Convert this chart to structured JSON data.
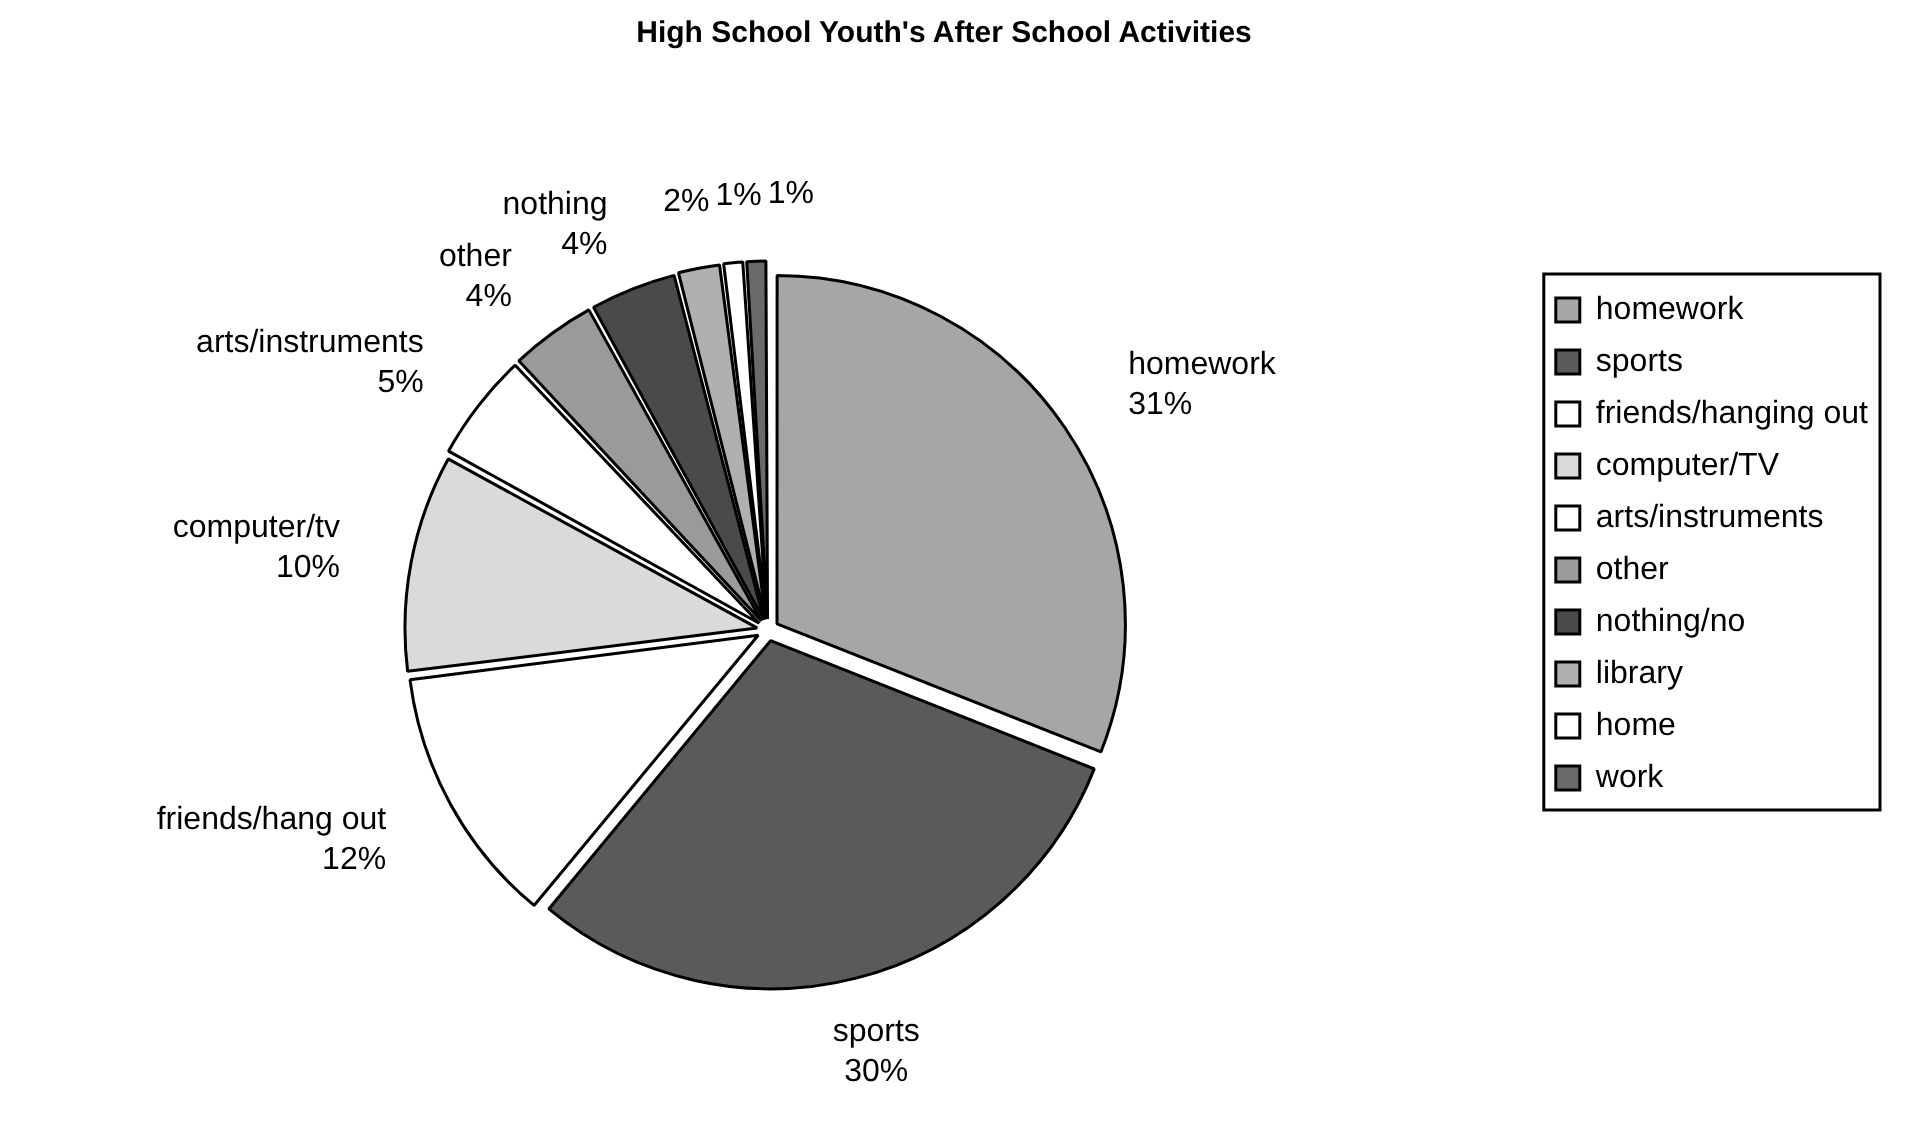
{
  "chart_data": {
    "type": "pie",
    "title": "High School Youth's After School Activities",
    "categories": [
      "homework",
      "sports",
      "friends/hanging out",
      "computer/TV",
      "arts/instruments",
      "other",
      "nothing/no",
      "library",
      "home",
      "work"
    ],
    "values": [
      31,
      30,
      12,
      10,
      5,
      4,
      4,
      2,
      1,
      1
    ],
    "colors": [
      "#a6a6a6",
      "#5a5a5a",
      "#ffffff",
      "#dadada",
      "#ffffff",
      "#9a9a9a",
      "#4a4a4a",
      "#b0b0b0",
      "#ffffff",
      "#6a6a6a"
    ],
    "value_labels": [
      "31%",
      "30%",
      "12%",
      "10%",
      "5%",
      "4%",
      "4%",
      "2%",
      "1%",
      "1%"
    ],
    "annotations": [
      "homework",
      "sports",
      "friends/hang out",
      "computer/tv",
      "arts/instruments",
      "other",
      "nothing"
    ],
    "legend": "right"
  }
}
